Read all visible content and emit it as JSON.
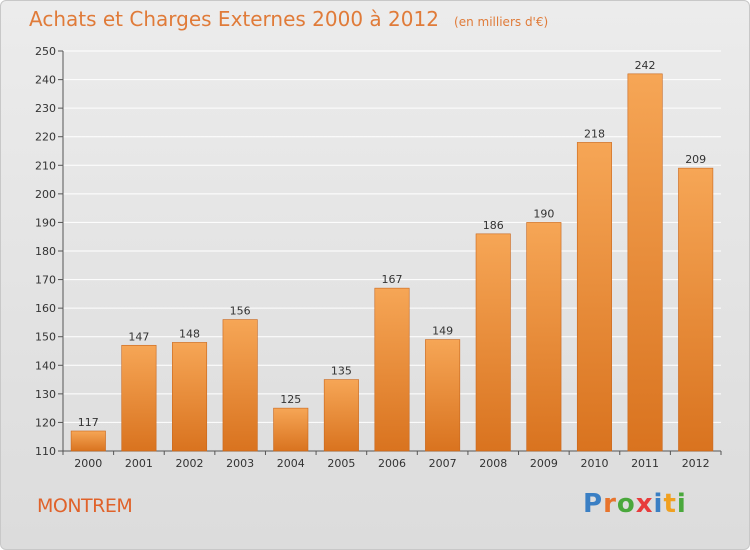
{
  "header": {
    "title": "Achats et Charges Externes 2000 à 2012",
    "subtitle": "(en milliers d'€)"
  },
  "footer": {
    "town": "MONTREM",
    "logo_letters": [
      "P",
      "r",
      "o",
      "x",
      "i",
      "t",
      "i"
    ],
    "logo_colors": [
      "#3a7fc4",
      "#e8742c",
      "#4aa83c",
      "#e83c3c",
      "#3a7fc4",
      "#f0a020",
      "#4aa83c"
    ]
  },
  "colors": {
    "bar_top": "#f6a656",
    "bar_bottom": "#d9731f",
    "title": "#e07b39",
    "town": "#e0622a",
    "grid": "#ffffff",
    "axis_text": "#333333"
  },
  "chart_data": {
    "type": "bar",
    "title": "Achats et Charges Externes 2000 à 2012",
    "subtitle": "(en milliers d'€)",
    "categories": [
      "2000",
      "2001",
      "2002",
      "2003",
      "2004",
      "2005",
      "2006",
      "2007",
      "2008",
      "2009",
      "2010",
      "2011",
      "2012"
    ],
    "values": [
      117,
      147,
      148,
      156,
      125,
      135,
      167,
      149,
      186,
      190,
      218,
      242,
      209
    ],
    "ylim": [
      110,
      250
    ],
    "yticks": [
      110,
      120,
      130,
      140,
      150,
      160,
      170,
      180,
      190,
      200,
      210,
      220,
      230,
      240,
      250
    ],
    "grid": true,
    "data_labels": true
  }
}
